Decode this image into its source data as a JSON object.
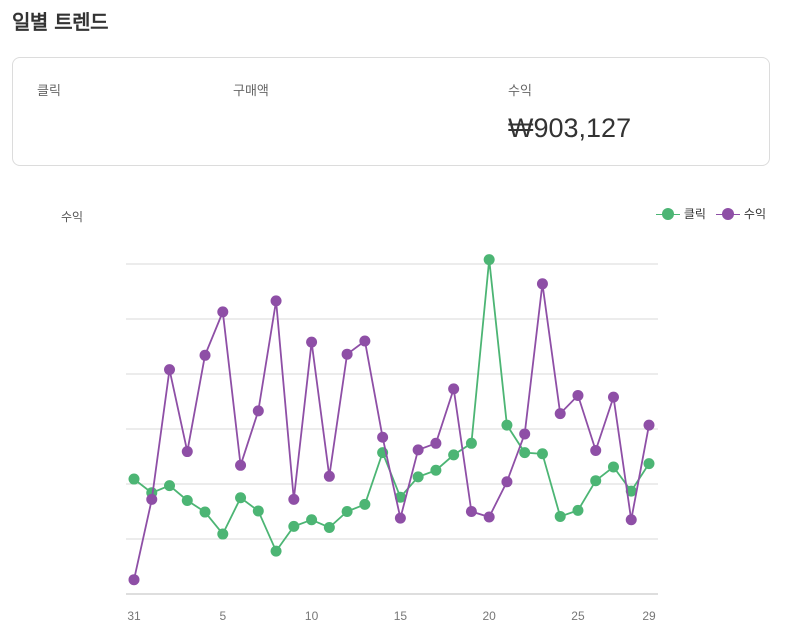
{
  "page": {
    "title": "일별 트렌드"
  },
  "summary": {
    "metrics": [
      {
        "label": "클릭",
        "value": ""
      },
      {
        "label": "구매액",
        "value": ""
      },
      {
        "label": "수익",
        "value": "₩903,127"
      }
    ]
  },
  "chart_data": {
    "type": "line",
    "ylabel": "수익",
    "legend_position": "top-right",
    "grid": true,
    "x_tick_labels": [
      "31",
      "5",
      "10",
      "15",
      "20",
      "25",
      "29"
    ],
    "x_tick_positions": [
      0,
      5,
      10,
      15,
      20,
      25,
      29
    ],
    "ylim": [
      0,
      600
    ],
    "series": [
      {
        "name": "클릭",
        "color": "#4cb574",
        "values": [
          209,
          184,
          197,
          170,
          149,
          109,
          175,
          151,
          78,
          123,
          135,
          121,
          150,
          163,
          257,
          176,
          213,
          225,
          253,
          274,
          608,
          307,
          257,
          255,
          141,
          152,
          206,
          231,
          187,
          237
        ]
      },
      {
        "name": "수익",
        "color": "#8e4fa6",
        "values": [
          26,
          172,
          408,
          259,
          434,
          513,
          234,
          333,
          533,
          172,
          458,
          214,
          436,
          460,
          285,
          138,
          262,
          274,
          373,
          150,
          140,
          204,
          291,
          564,
          328,
          361,
          261,
          358,
          135,
          307
        ]
      }
    ]
  }
}
